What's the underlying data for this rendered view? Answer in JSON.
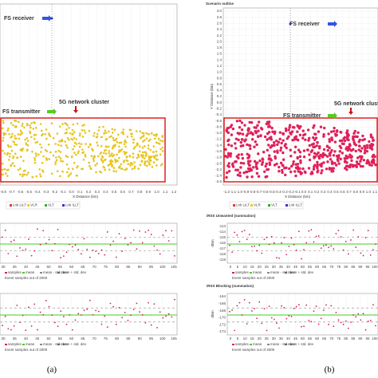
{
  "panels": [
    {
      "label": "(a)",
      "scenario": {
        "receiver": "FS receiver",
        "transmitter": "FS transmitter",
        "cluster": "5G network cluster",
        "x_label": "X Distance (km)",
        "x_ticks": [
          "-0.8",
          "-0.7",
          "-0.6",
          "-0.5",
          "-0.4",
          "-0.3",
          "-0.2",
          "-0.1",
          "0.0",
          "0.1",
          "0.2",
          "0.3",
          "0.4",
          "0.5",
          "0.6",
          "0.7",
          "0.8",
          "0.9",
          "1.0",
          "1.1",
          "1.2"
        ],
        "legend": [
          "Lnk LILT",
          "VLR",
          "VLT",
          "Lnk ILLT"
        ]
      },
      "plots": [
        {
          "x_label": "Event samples out of 2000",
          "x_ticks": [
            "30",
            "35",
            "40",
            "45",
            "50",
            "55",
            "60",
            "65",
            "70",
            "75",
            "80",
            "85",
            "90",
            "95",
            "100",
            "105"
          ],
          "legend": [
            "samples",
            "mean",
            "mean - std. dev",
            "mean + std. dev"
          ]
        },
        {
          "x_label": "Event samples out of 2000",
          "x_ticks": [
            "30",
            "35",
            "40",
            "45",
            "50",
            "55",
            "60",
            "65",
            "70",
            "75",
            "80",
            "85",
            "90",
            "95",
            "100",
            "105"
          ],
          "legend": [
            "samples",
            "mean",
            "mean - std. dev",
            "mean + std. dev"
          ]
        }
      ]
    },
    {
      "label": "(b)",
      "scenario": {
        "title": "Scenario outline",
        "receiver": "FS receiver",
        "transmitter": "FS transmitter",
        "cluster": "5G network cluster",
        "x_label": "X Distance (km)",
        "y_label": "Y Distance (km)",
        "x_ticks": [
          "-1.2",
          "-1.1",
          "-1.0",
          "-0.9",
          "-0.8",
          "-0.7",
          "-0.6",
          "-0.5",
          "-0.4",
          "-0.3",
          "-0.2",
          "-0.1",
          "0.0",
          "0.1",
          "0.2",
          "0.3",
          "0.4",
          "0.5",
          "0.6",
          "0.7",
          "0.8",
          "0.9",
          "1.0",
          "1.1"
        ],
        "y_ticks": [
          "3.0",
          "2.8",
          "2.6",
          "2.4",
          "2.2",
          "2.0",
          "1.8",
          "1.6",
          "1.4",
          "1.2",
          "1.0",
          "0.8",
          "0.6",
          "0.4",
          "0.2",
          "0.0",
          "-0.2",
          "-0.4",
          "-0.6",
          "-0.8",
          "-1.0",
          "-1.2",
          "-1.4",
          "-1.6",
          "-1.8",
          "-2.0",
          "-2.2",
          "-2.4",
          "-2.6"
        ],
        "legend": [
          "Lnk LILT",
          "VLR",
          "VLT",
          "Lnk ILLT"
        ]
      },
      "plots": [
        {
          "title": "iRSS Unwanted (summation)",
          "y_label": "dBm",
          "x_label": "Event samples out of 2000",
          "y_ticks": [
            "-113",
            "-114",
            "-115",
            "-116",
            "-117",
            "-118",
            "-119"
          ],
          "x_ticks": [
            "0",
            "5",
            "10",
            "15",
            "20",
            "25",
            "30",
            "35",
            "40",
            "45",
            "50",
            "55",
            "60",
            "65",
            "70",
            "75",
            "80",
            "85",
            "90",
            "95",
            "100"
          ],
          "legend": [
            "samples",
            "mean",
            "mean - std. dev",
            "mean + std. dev"
          ]
        },
        {
          "title": "iRSS Blocking (summation)",
          "y_label": "dBm",
          "x_label": "Event samples out of 2000",
          "y_ticks": [
            "-164",
            "-166",
            "-168",
            "-170",
            "-172",
            "-174"
          ],
          "x_ticks": [
            "0",
            "5",
            "10",
            "15",
            "20",
            "25",
            "30",
            "35",
            "40",
            "45",
            "50",
            "55",
            "60",
            "65",
            "70",
            "75",
            "80",
            "85",
            "90",
            "95",
            "100"
          ],
          "legend": [
            "samples",
            "mean",
            "mean - std. dev",
            "mean + std. dev"
          ]
        }
      ]
    }
  ]
}
